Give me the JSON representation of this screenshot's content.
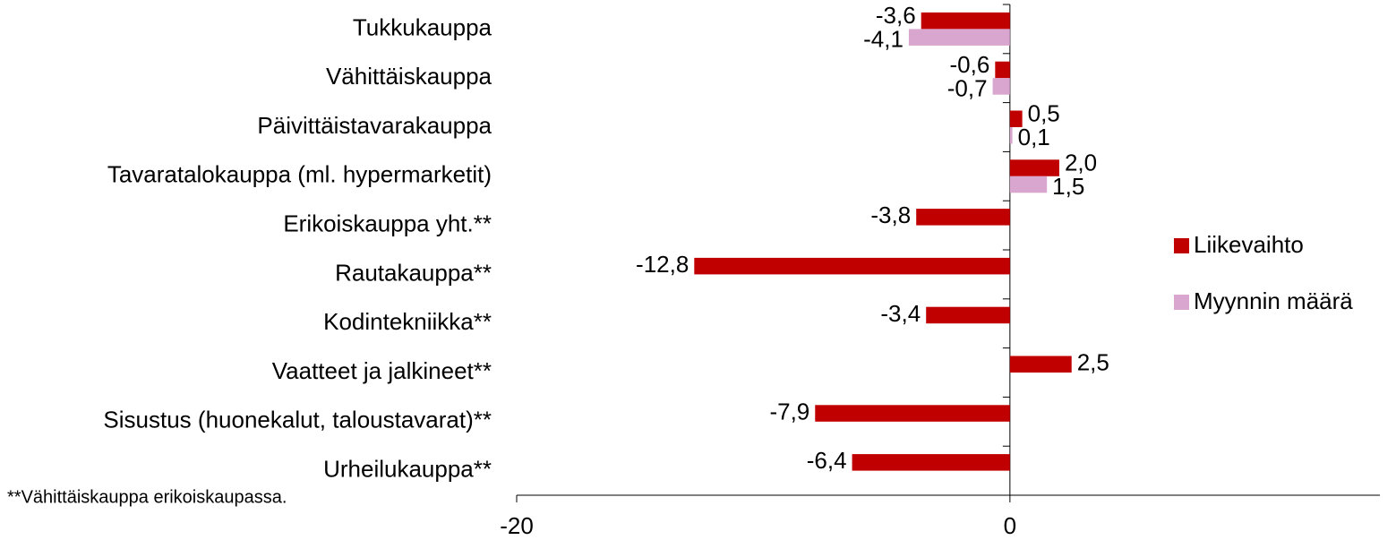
{
  "chart_data": {
    "type": "hbar",
    "categories": [
      "Tukkukauppa",
      "Vähittäiskauppa",
      "Päivittäistavarakauppa",
      "Tavaratalokauppa (ml. hypermarketit)",
      "Erikoiskauppa yht.**",
      "Rautakauppa**",
      "Kodintekniikka**",
      "Vaatteet ja jalkineet**",
      "Sisustus (huonekalut, taloustavarat)**",
      "Urheilukauppa**"
    ],
    "series": [
      {
        "name": "Liikevaihto",
        "color": "#c00000",
        "values": [
          -3.6,
          -0.6,
          0.5,
          2.0,
          -3.8,
          -12.8,
          -3.4,
          2.5,
          -7.9,
          -6.4
        ],
        "value_labels": [
          "-3,6",
          "-0,6",
          "0,5",
          "2,0",
          "-3,8",
          "-12,8",
          "-3,4",
          "2,5",
          "-7,9",
          "-6,4"
        ]
      },
      {
        "name": "Myynnin määrä",
        "color": "#d9a6cf",
        "values": [
          -4.1,
          -0.7,
          0.1,
          1.5,
          null,
          null,
          null,
          null,
          null,
          null
        ],
        "value_labels": [
          "-4,1",
          "-0,7",
          "0,1",
          "1,5",
          null,
          null,
          null,
          null,
          null,
          null
        ]
      }
    ],
    "xlim": [
      -20,
      15
    ],
    "xticks": [
      -20,
      0
    ],
    "note": "**Vähittäiskauppa erikoiskaupassa."
  }
}
